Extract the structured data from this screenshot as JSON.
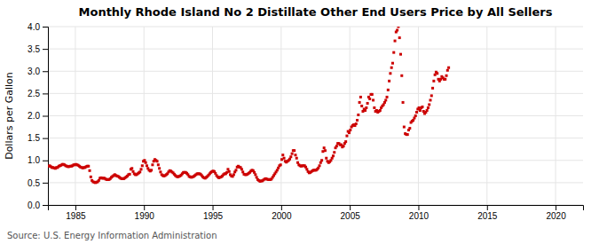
{
  "chart_data": {
    "type": "scatter",
    "title": "Monthly Rhode Island No 2 Distillate Other End Users Price by All Sellers",
    "ylabel": "Dollars per Gallon",
    "annotations": [
      "Source: U.S. Energy Information Administration"
    ],
    "color": "#cc0000",
    "marker": "square",
    "grid": true,
    "xlim": [
      1983,
      2022
    ],
    "ylim": [
      0.0,
      4.0
    ],
    "xticks": [
      1985,
      1990,
      1995,
      2000,
      2005,
      2010,
      2015,
      2020
    ],
    "yticks": [
      {
        "value": 0.0,
        "label": "0.0"
      },
      0.5,
      {
        "value": 1.0,
        "label": "1.0"
      },
      1.5,
      {
        "value": 2.0,
        "label": "2.0"
      },
      2.5,
      {
        "value": 3.0,
        "label": "3.0"
      },
      3.5,
      {
        "value": 4.0,
        "label": "4.0"
      }
    ],
    "x": [
      1983.0416666667,
      1983.125,
      1983.2083333333,
      1983.2916666667,
      1983.375,
      1983.4583333333,
      1983.5416666667,
      1983.625,
      1983.7083333333,
      1983.7916666667,
      1983.875,
      1983.9583333333,
      1984.0416666667,
      1984.125,
      1984.2083333333,
      1984.2916666667,
      1984.375,
      1984.4583333333,
      1984.5416666667,
      1984.625,
      1984.7083333333,
      1984.7916666667,
      1984.875,
      1984.9583333333,
      1985.0416666667,
      1985.125,
      1985.2083333333,
      1985.2916666667,
      1985.375,
      1985.4583333333,
      1985.5416666667,
      1985.625,
      1985.7083333333,
      1985.7916666667,
      1985.875,
      1985.9583333333,
      1986.0416666667,
      1986.125,
      1986.2083333333,
      1986.2916666667,
      1986.375,
      1986.4583333333,
      1986.5416666667,
      1986.625,
      1986.7083333333,
      1986.7916666667,
      1986.875,
      1986.9583333333,
      1987.0416666667,
      1987.125,
      1987.2083333333,
      1987.2916666667,
      1987.375,
      1987.4583333333,
      1987.5416666667,
      1987.625,
      1987.7083333333,
      1987.7916666667,
      1987.875,
      1987.9583333333,
      1988.0416666667,
      1988.125,
      1988.2083333333,
      1988.2916666667,
      1988.375,
      1988.4583333333,
      1988.5416666667,
      1988.625,
      1988.7083333333,
      1988.7916666667,
      1988.875,
      1988.9583333333,
      1989.0416666667,
      1989.125,
      1989.2083333333,
      1989.2916666667,
      1989.375,
      1989.4583333333,
      1989.5416666667,
      1989.625,
      1989.7083333333,
      1989.7916666667,
      1989.875,
      1989.9583333333,
      1990.0416666667,
      1990.125,
      1990.2083333333,
      1990.2916666667,
      1990.375,
      1990.4583333333,
      1990.5416666667,
      1990.625,
      1990.7083333333,
      1990.7916666667,
      1990.875,
      1990.9583333333,
      1991.0416666667,
      1991.125,
      1991.2083333333,
      1991.2916666667,
      1991.375,
      1991.4583333333,
      1991.5416666667,
      1991.625,
      1991.7083333333,
      1991.7916666667,
      1991.875,
      1991.9583333333,
      1992.0416666667,
      1992.125,
      1992.2083333333,
      1992.2916666667,
      1992.375,
      1992.4583333333,
      1992.5416666667,
      1992.625,
      1992.7083333333,
      1992.7916666667,
      1992.875,
      1992.9583333333,
      1993.0416666667,
      1993.125,
      1993.2083333333,
      1993.2916666667,
      1993.375,
      1993.4583333333,
      1993.5416666667,
      1993.625,
      1993.7083333333,
      1993.7916666667,
      1993.875,
      1993.9583333333,
      1994.0416666667,
      1994.125,
      1994.2083333333,
      1994.2916666667,
      1994.375,
      1994.4583333333,
      1994.5416666667,
      1994.625,
      1994.7083333333,
      1994.7916666667,
      1994.875,
      1994.9583333333,
      1995.0416666667,
      1995.125,
      1995.2083333333,
      1995.2916666667,
      1995.375,
      1995.4583333333,
      1995.5416666667,
      1995.625,
      1995.7083333333,
      1995.7916666667,
      1995.875,
      1995.9583333333,
      1996.0416666667,
      1996.125,
      1996.2083333333,
      1996.2916666667,
      1996.375,
      1996.4583333333,
      1996.5416666667,
      1996.625,
      1996.7083333333,
      1996.7916666667,
      1996.875,
      1996.9583333333,
      1997.0416666667,
      1997.125,
      1997.2083333333,
      1997.2916666667,
      1997.375,
      1997.4583333333,
      1997.5416666667,
      1997.625,
      1997.7083333333,
      1997.7916666667,
      1997.875,
      1997.9583333333,
      1998.0416666667,
      1998.125,
      1998.2083333333,
      1998.2916666667,
      1998.375,
      1998.4583333333,
      1998.5416666667,
      1998.625,
      1998.7083333333,
      1998.7916666667,
      1998.875,
      1998.9583333333,
      1999.0416666667,
      1999.125,
      1999.2083333333,
      1999.2916666667,
      1999.375,
      1999.4583333333,
      1999.5416666667,
      1999.625,
      1999.7083333333,
      1999.7916666667,
      1999.875,
      1999.9583333333,
      2000.0416666667,
      2000.125,
      2000.2083333333,
      2000.2916666667,
      2000.375,
      2000.4583333333,
      2000.5416666667,
      2000.625,
      2000.7083333333,
      2000.7916666667,
      2000.875,
      2000.9583333333,
      2001.0416666667,
      2001.125,
      2001.2083333333,
      2001.2916666667,
      2001.375,
      2001.4583333333,
      2001.5416666667,
      2001.625,
      2001.7083333333,
      2001.7916666667,
      2001.875,
      2001.9583333333,
      2002.0416666667,
      2002.125,
      2002.2083333333,
      2002.2916666667,
      2002.375,
      2002.4583333333,
      2002.5416666667,
      2002.625,
      2002.7083333333,
      2002.7916666667,
      2002.875,
      2002.9583333333,
      2003.0416666667,
      2003.125,
      2003.2083333333,
      2003.2916666667,
      2003.375,
      2003.4583333333,
      2003.5416666667,
      2003.625,
      2003.7083333333,
      2003.7916666667,
      2003.875,
      2003.9583333333,
      2004.0416666667,
      2004.125,
      2004.2083333333,
      2004.2916666667,
      2004.375,
      2004.4583333333,
      2004.5416666667,
      2004.625,
      2004.7083333333,
      2004.7916666667,
      2004.875,
      2004.9583333333,
      2005.0416666667,
      2005.125,
      2005.2083333333,
      2005.2916666667,
      2005.375,
      2005.4583333333,
      2005.5416666667,
      2005.625,
      2005.7083333333,
      2005.7916666667,
      2005.875,
      2005.9583333333,
      2006.0416666667,
      2006.125,
      2006.2083333333,
      2006.2916666667,
      2006.375,
      2006.4583333333,
      2006.5416666667,
      2006.625,
      2006.7083333333,
      2006.7916666667,
      2006.875,
      2006.9583333333,
      2007.0416666667,
      2007.125,
      2007.2083333333,
      2007.2916666667,
      2007.375,
      2007.4583333333,
      2007.5416666667,
      2007.625,
      2007.7083333333,
      2007.7916666667,
      2007.875,
      2007.9583333333,
      2008.0416666667,
      2008.125,
      2008.2083333333,
      2008.2916666667,
      2008.375,
      2008.4583333333,
      2008.5416666667,
      2008.625,
      2008.7083333333,
      2008.7916666667,
      2008.875,
      2008.9583333333,
      2009.0416666667,
      2009.125,
      2009.2083333333,
      2009.2916666667,
      2009.375,
      2009.4583333333,
      2009.5416666667,
      2009.625,
      2009.7083333333,
      2009.7916666667,
      2009.875,
      2009.9583333333,
      2010.0416666667,
      2010.125,
      2010.2083333333,
      2010.2916666667,
      2010.375,
      2010.4583333333,
      2010.5416666667,
      2010.625,
      2010.7083333333,
      2010.7916666667,
      2010.875,
      2010.9583333333,
      2011.0416666667,
      2011.125,
      2011.2083333333,
      2011.2916666667,
      2011.375,
      2011.4583333333,
      2011.5416666667,
      2011.625,
      2011.7083333333,
      2011.7916666667,
      2011.875,
      2011.9583333333,
      2012.0416666667,
      2012.125,
      2012.2083333333
    ],
    "values": [
      0.87,
      0.88,
      0.86,
      0.84,
      0.84,
      0.83,
      0.82,
      0.84,
      0.84,
      0.87,
      0.88,
      0.89,
      0.91,
      0.91,
      0.9,
      0.88,
      0.87,
      0.86,
      0.86,
      0.87,
      0.87,
      0.88,
      0.9,
      0.9,
      0.91,
      0.9,
      0.89,
      0.87,
      0.85,
      0.84,
      0.83,
      0.84,
      0.84,
      0.86,
      0.87,
      0.87,
      0.77,
      0.63,
      0.55,
      0.52,
      0.51,
      0.5,
      0.51,
      0.52,
      0.55,
      0.6,
      0.61,
      0.6,
      0.6,
      0.6,
      0.58,
      0.57,
      0.57,
      0.57,
      0.59,
      0.62,
      0.64,
      0.66,
      0.68,
      0.66,
      0.65,
      0.64,
      0.62,
      0.6,
      0.59,
      0.59,
      0.59,
      0.61,
      0.63,
      0.65,
      0.68,
      0.69,
      0.8,
      0.82,
      0.75,
      0.7,
      0.68,
      0.68,
      0.7,
      0.72,
      0.74,
      0.8,
      0.88,
      0.98,
      1.0,
      0.95,
      0.88,
      0.82,
      0.78,
      0.76,
      0.78,
      0.9,
      0.98,
      1.02,
      1.0,
      0.98,
      0.9,
      0.82,
      0.74,
      0.68,
      0.66,
      0.65,
      0.66,
      0.68,
      0.7,
      0.74,
      0.77,
      0.76,
      0.74,
      0.72,
      0.69,
      0.66,
      0.64,
      0.63,
      0.64,
      0.65,
      0.67,
      0.7,
      0.73,
      0.73,
      0.73,
      0.71,
      0.68,
      0.64,
      0.63,
      0.62,
      0.63,
      0.64,
      0.66,
      0.68,
      0.7,
      0.7,
      0.7,
      0.69,
      0.66,
      0.63,
      0.61,
      0.6,
      0.62,
      0.64,
      0.67,
      0.7,
      0.73,
      0.75,
      0.76,
      0.75,
      0.71,
      0.66,
      0.63,
      0.61,
      0.62,
      0.63,
      0.65,
      0.68,
      0.7,
      0.7,
      0.73,
      0.8,
      0.75,
      0.68,
      0.65,
      0.64,
      0.68,
      0.74,
      0.78,
      0.85,
      0.87,
      0.85,
      0.84,
      0.8,
      0.74,
      0.69,
      0.68,
      0.68,
      0.69,
      0.71,
      0.73,
      0.76,
      0.78,
      0.77,
      0.73,
      0.68,
      0.62,
      0.57,
      0.55,
      0.53,
      0.54,
      0.54,
      0.56,
      0.58,
      0.59,
      0.58,
      0.57,
      0.57,
      0.57,
      0.58,
      0.62,
      0.66,
      0.7,
      0.74,
      0.78,
      0.83,
      0.88,
      0.9,
      1.02,
      1.12,
      1.05,
      0.98,
      0.96,
      0.98,
      1.0,
      1.03,
      1.08,
      1.15,
      1.22,
      1.22,
      1.12,
      1.05,
      0.95,
      0.9,
      0.88,
      0.87,
      0.88,
      0.88,
      0.88,
      0.85,
      0.8,
      0.75,
      0.72,
      0.73,
      0.75,
      0.77,
      0.78,
      0.78,
      0.78,
      0.8,
      0.83,
      0.88,
      0.95,
      1.0,
      1.2,
      1.28,
      1.22,
      1.05,
      0.98,
      0.95,
      0.97,
      1.0,
      1.05,
      1.1,
      1.18,
      1.28,
      1.32,
      1.38,
      1.38,
      1.35,
      1.35,
      1.3,
      1.32,
      1.38,
      1.42,
      1.55,
      1.65,
      1.62,
      1.68,
      1.75,
      1.78,
      1.8,
      1.78,
      1.82,
      1.9,
      2.02,
      2.3,
      2.42,
      2.22,
      2.1,
      2.15,
      2.12,
      2.18,
      2.28,
      2.42,
      2.38,
      2.48,
      2.48,
      2.35,
      2.18,
      2.1,
      2.12,
      2.08,
      2.1,
      2.12,
      2.18,
      2.22,
      2.25,
      2.3,
      2.35,
      2.42,
      2.58,
      2.78,
      2.95,
      3.08,
      3.18,
      3.42,
      3.68,
      3.88,
      3.92,
      4.0,
      3.75,
      3.38,
      2.9,
      2.3,
      1.75,
      1.6,
      1.58,
      1.58,
      1.68,
      1.72,
      1.85,
      1.88,
      1.9,
      1.95,
      2.0,
      2.08,
      2.15,
      2.18,
      2.12,
      2.18,
      2.2,
      2.1,
      2.05,
      2.08,
      2.12,
      2.18,
      2.25,
      2.35,
      2.45,
      2.62,
      2.78,
      2.92,
      2.98,
      2.95,
      2.82,
      2.78,
      2.82,
      2.88,
      2.85,
      2.82,
      2.82,
      2.9,
      3.02,
      3.08
    ]
  }
}
